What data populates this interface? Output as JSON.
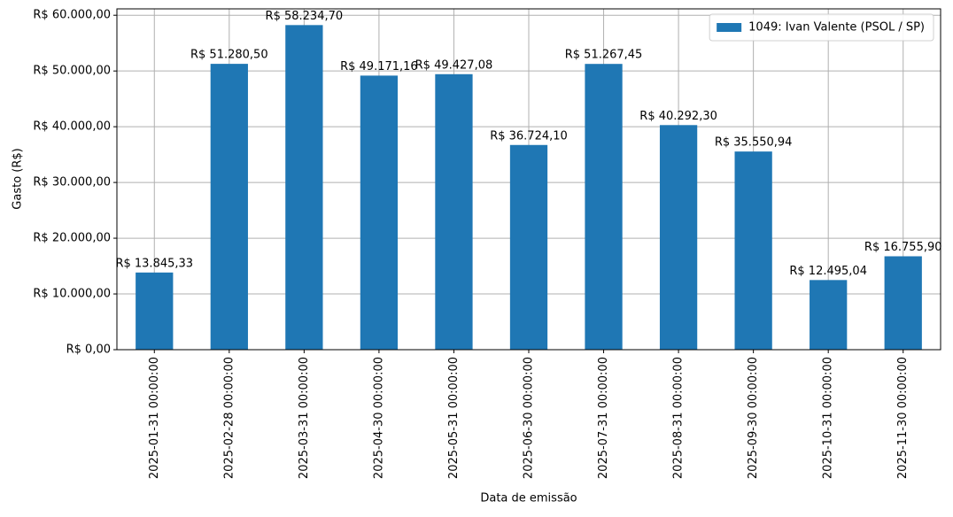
{
  "chart_data": {
    "type": "bar",
    "xlabel": "Data de emissão",
    "ylabel": "Gasto (R$)",
    "categories": [
      "2025-01-31 00:00:00",
      "2025-02-28 00:00:00",
      "2025-03-31 00:00:00",
      "2025-04-30 00:00:00",
      "2025-05-31 00:00:00",
      "2025-06-30 00:00:00",
      "2025-07-31 00:00:00",
      "2025-08-31 00:00:00",
      "2025-09-30 00:00:00",
      "2025-10-31 00:00:00",
      "2025-11-30 00:00:00"
    ],
    "series": [
      {
        "name": "1049: Ivan Valente (PSOL / SP)",
        "color": "#1f77b4",
        "values": [
          13845.33,
          51280.5,
          58234.7,
          49171.16,
          49427.08,
          36724.1,
          51267.45,
          40292.3,
          35550.94,
          12495.04,
          16755.9
        ],
        "value_labels": [
          "R$ 13.845,33",
          "R$ 51.280,50",
          "R$ 58.234,70",
          "R$ 49.171,16",
          "R$ 49.427,08",
          "R$ 36.724,10",
          "R$ 51.267,45",
          "R$ 40.292,30",
          "R$ 35.550,94",
          "R$ 12.495,04",
          "R$ 16.755,90"
        ]
      }
    ],
    "ylim": [
      0,
      61146
    ],
    "yticks": [
      {
        "value": 0,
        "label": "R$ 0,00"
      },
      {
        "value": 10000,
        "label": "R$ 10.000,00"
      },
      {
        "value": 20000,
        "label": "R$ 20.000,00"
      },
      {
        "value": 30000,
        "label": "R$ 30.000,00"
      },
      {
        "value": 40000,
        "label": "R$ 40.000,00"
      },
      {
        "value": 50000,
        "label": "R$ 50.000,00"
      },
      {
        "value": 60000,
        "label": "R$ 60.000,00"
      }
    ],
    "grid": true,
    "legend": "upper right"
  }
}
